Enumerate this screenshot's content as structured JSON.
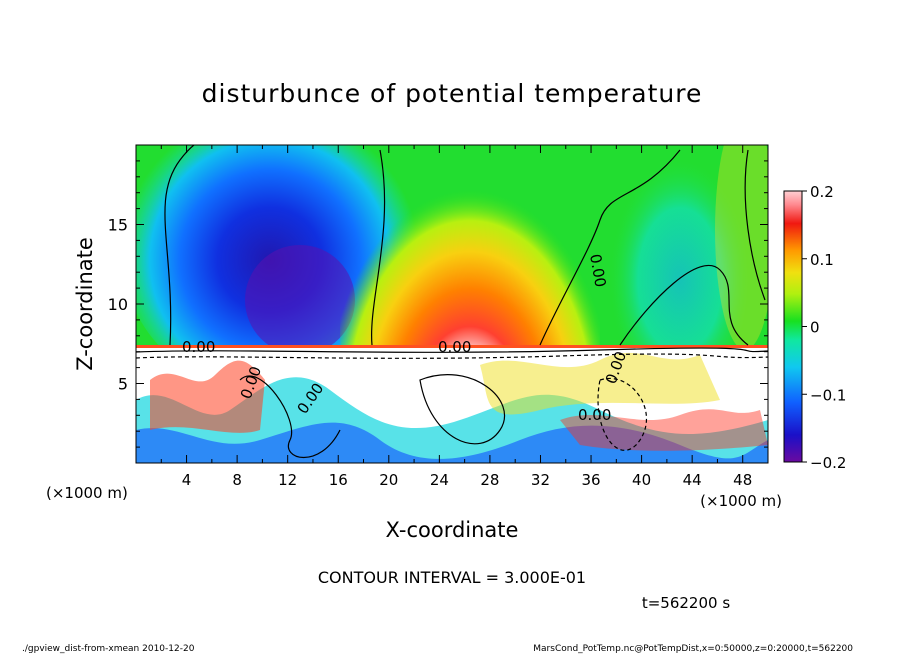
{
  "chart_data": {
    "type": "heatmap",
    "title": "disturbunce of potential temperature",
    "xlabel": "X-coordinate",
    "ylabel": "Z-coordinate",
    "x_unit": "(×1000 m)",
    "y_unit": "(×1000 m)",
    "xlim": [
      0,
      50
    ],
    "ylim": [
      0,
      20
    ],
    "x_ticks": [
      "4",
      "8",
      "12",
      "16",
      "20",
      "24",
      "28",
      "32",
      "36",
      "40",
      "44",
      "48"
    ],
    "y_ticks": [
      "5",
      "10",
      "15"
    ],
    "x_tick_values": [
      4,
      8,
      12,
      16,
      20,
      24,
      28,
      32,
      36,
      40,
      44,
      48
    ],
    "y_tick_values": [
      5,
      10,
      15
    ],
    "colorbar": {
      "range": [
        -0.2,
        0.2
      ],
      "tick_labels": [
        "0.2",
        "0.1",
        "0",
        "−0.1",
        "−0.2"
      ],
      "tick_values": [
        0.2,
        0.1,
        0,
        -0.1,
        -0.2
      ]
    },
    "contour_labels": [
      "0.00",
      "0.00",
      "0.00",
      "0.00",
      "0.00",
      "0.00",
      "0.00"
    ],
    "contour_interval_text": "CONTOUR INTERVAL = 3.000E-01",
    "time_text": "t=562200 s",
    "grid": false,
    "legend": "colorbar-right"
  },
  "footer": {
    "left": "./gpview_dist-from-xmean   2010-12-20",
    "right": "MarsCond_PotTemp.nc@PotTempDist,x=0:50000,z=0:20000,t=562200"
  }
}
